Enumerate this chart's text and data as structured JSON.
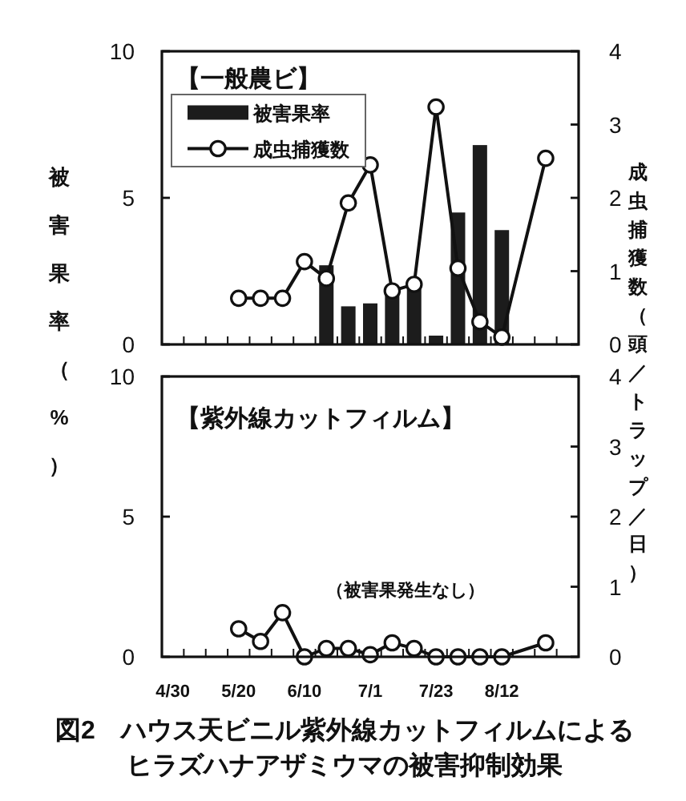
{
  "chart_data": [
    {
      "type": "bar",
      "title": "【一般農ビ】",
      "ylabel": "被害果率（%）",
      "y2label": "成虫捕獲数（頭／トラップ／日）",
      "categories": [
        null,
        null,
        null,
        null,
        null,
        null,
        null,
        null,
        null,
        null,
        null,
        null,
        null,
        null,
        null,
        null,
        null,
        null,
        null
      ],
      "series": [
        {
          "name": "被害果率",
          "color": "#1c1c1c",
          "values": [
            null,
            null,
            null,
            null,
            null,
            null,
            null,
            2.7,
            1.3,
            1.4,
            1.8,
            1.9,
            0.3,
            4.5,
            6.8,
            3.9,
            null,
            null,
            null
          ]
        },
        {
          "name": "成虫捕獲数",
          "type": "line",
          "axis": "y2",
          "color": "#111111",
          "marker": "circle",
          "values": [
            null,
            null,
            null,
            0.63,
            0.63,
            0.63,
            1.13,
            0.9,
            1.93,
            2.45,
            0.73,
            0.82,
            3.24,
            1.04,
            0.31,
            0.1,
            null,
            2.54,
            null
          ]
        }
      ],
      "ylim": [
        0,
        10
      ],
      "yticks": [
        0,
        5,
        10
      ],
      "y2lim": [
        0,
        4
      ],
      "y2ticks": [
        0,
        1,
        2,
        3,
        4
      ],
      "legend": "top left"
    },
    {
      "type": "line",
      "title": "【紫外線カットフィルム】",
      "categories": [
        "4/30",
        null,
        null,
        "5/20",
        null,
        null,
        "6/10",
        null,
        null,
        "7/1",
        null,
        null,
        "7/23",
        null,
        null,
        "8/12",
        null,
        null,
        null
      ],
      "series": [
        {
          "axis": "y2",
          "color": "#111111",
          "marker": "circle",
          "values": [
            null,
            null,
            null,
            0.4,
            0.22,
            0.63,
            0,
            0.12,
            0.12,
            0.03,
            0.2,
            0.12,
            0,
            0,
            0,
            0,
            null,
            0.2,
            null
          ]
        }
      ],
      "ylim": [
        0,
        10
      ],
      "yticks": [
        0,
        5,
        10
      ],
      "y2lim": [
        0,
        4
      ],
      "y2ticks": [
        0,
        1,
        2,
        3,
        4
      ],
      "annotations": [
        "（被害果発生なし）",
        "図2　ハウス天ビニル紫外線カットフィルムによるヒラズハナアザミウマの被害抑制効果"
      ]
    }
  ]
}
